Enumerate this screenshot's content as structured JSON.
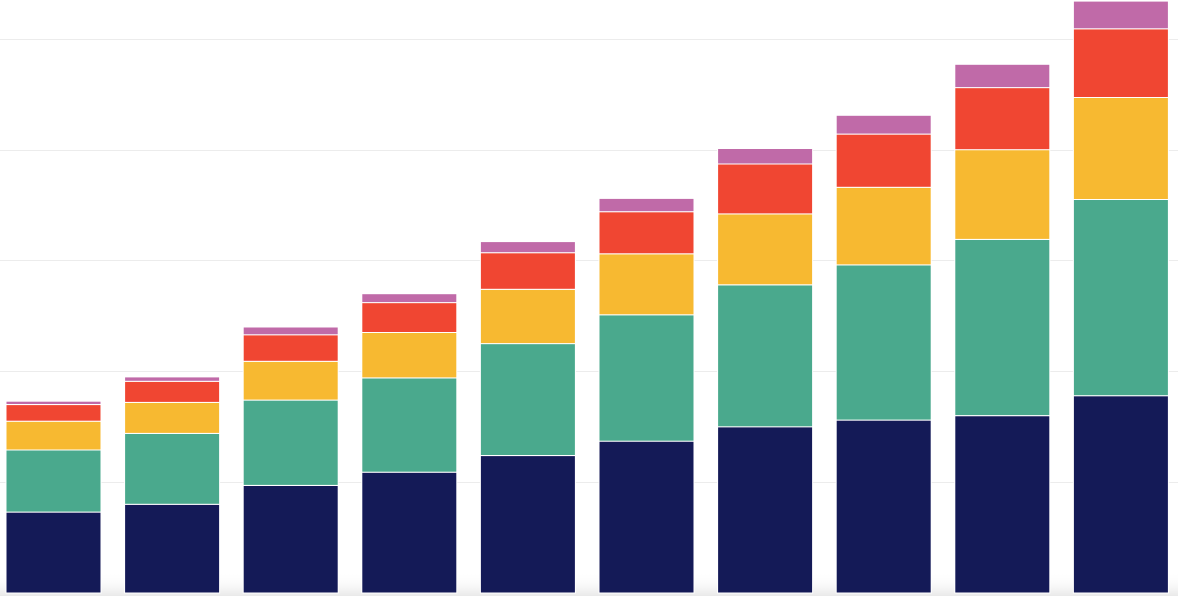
{
  "chart_data": {
    "type": "bar",
    "stacked": true,
    "title": "",
    "xlabel": "",
    "ylabel": "",
    "ylim": [
      0,
      5.35
    ],
    "gridlines_y": [
      1,
      2,
      3,
      4,
      5
    ],
    "grid": true,
    "legend": "none",
    "categories": [
      "",
      "",
      "",
      "",
      "",
      "",
      "",
      "",
      "",
      ""
    ],
    "series": [
      {
        "color": "#141a57",
        "values": [
          0.73,
          0.8,
          0.97,
          1.09,
          1.24,
          1.37,
          1.5,
          1.56,
          1.6,
          1.78
        ]
      },
      {
        "color": "#4aa98d",
        "values": [
          0.56,
          0.64,
          0.77,
          0.85,
          1.01,
          1.14,
          1.28,
          1.4,
          1.59,
          1.77
        ]
      },
      {
        "color": "#f7b931",
        "values": [
          0.26,
          0.28,
          0.35,
          0.41,
          0.49,
          0.55,
          0.64,
          0.7,
          0.81,
          0.92
        ]
      },
      {
        "color": "#f04632",
        "values": [
          0.15,
          0.19,
          0.24,
          0.27,
          0.33,
          0.38,
          0.45,
          0.48,
          0.56,
          0.62
        ]
      },
      {
        "color": "#c06aa8",
        "values": [
          0.03,
          0.04,
          0.07,
          0.08,
          0.1,
          0.12,
          0.14,
          0.17,
          0.21,
          0.25
        ]
      }
    ]
  }
}
